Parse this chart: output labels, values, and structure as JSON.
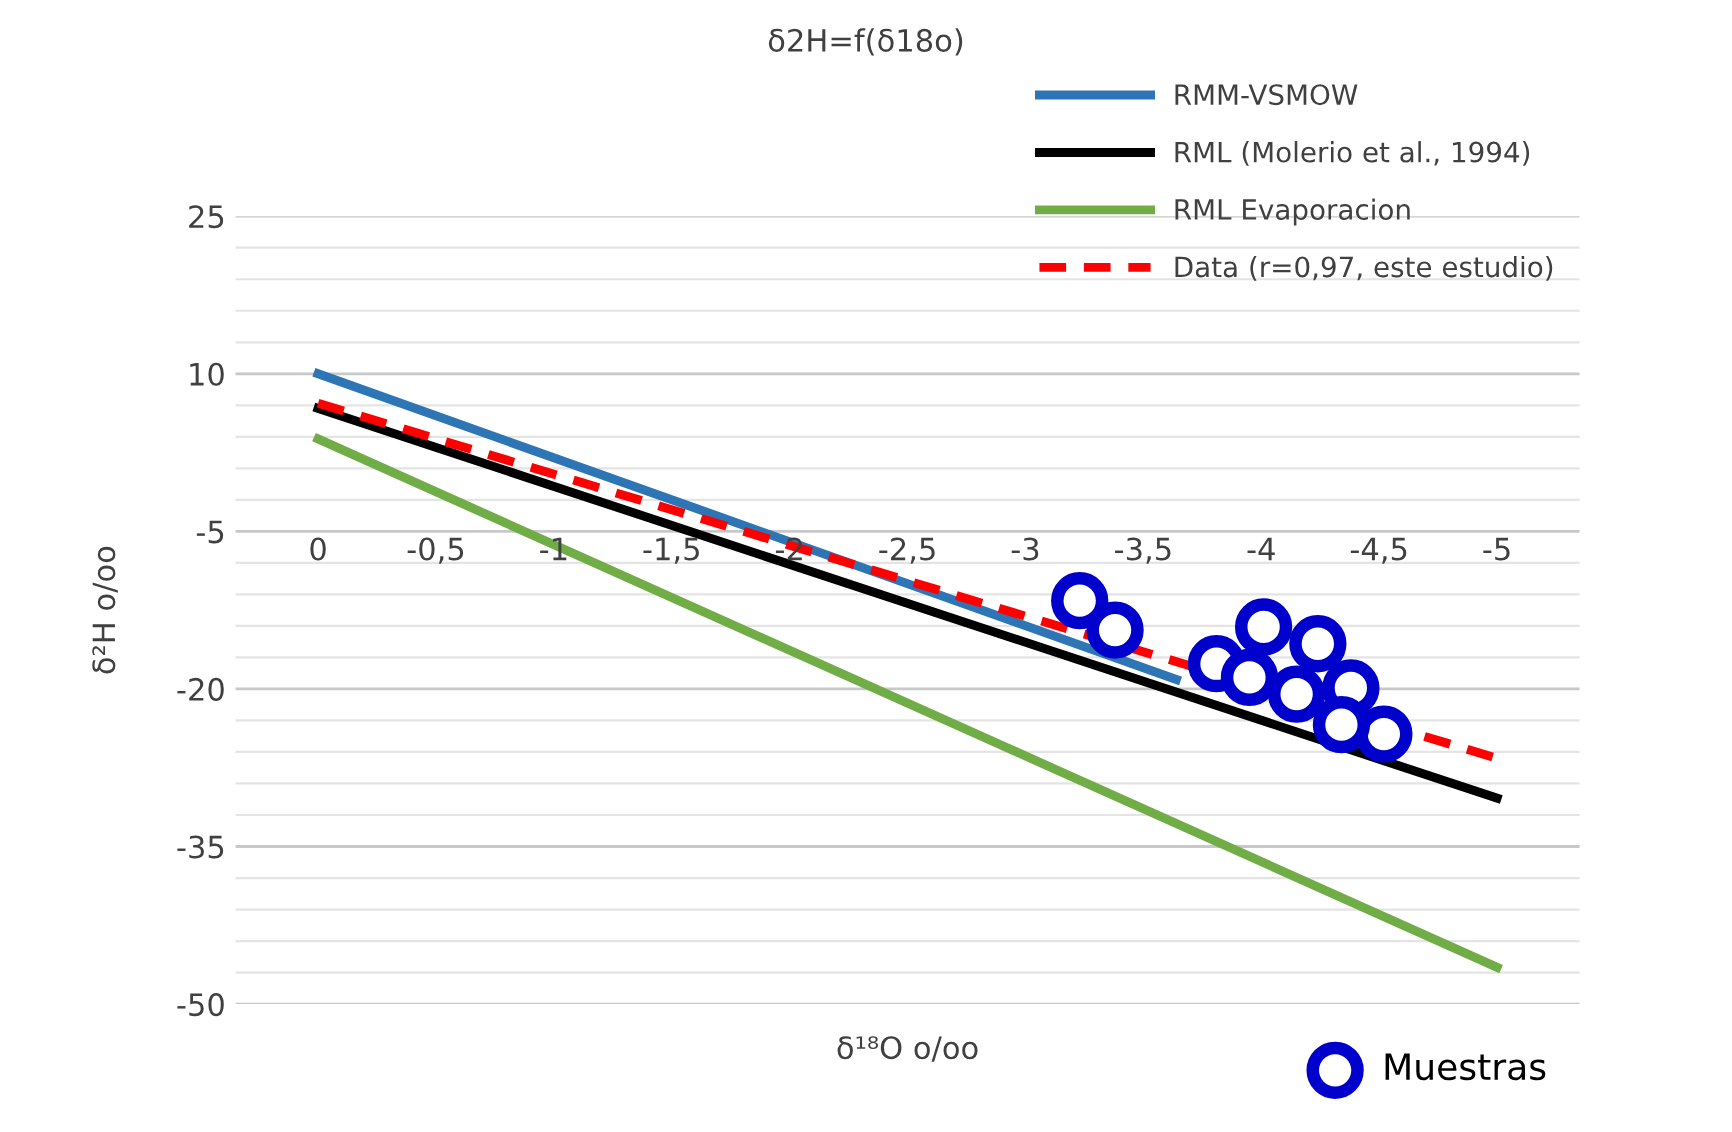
{
  "chart_data": {
    "type": "line",
    "title": "δ2H=f(δ18o)",
    "xlabel": "δ¹⁸O o/oo",
    "ylabel": "δ²H o/oo",
    "xlim": [
      0.35,
      -5.35
    ],
    "xticks": [
      {
        "value": 0,
        "label": "0"
      },
      {
        "value": -0.5,
        "label": "-0,5"
      },
      {
        "value": -1,
        "label": "-1"
      },
      {
        "value": -1.5,
        "label": "-1,5"
      },
      {
        "value": -2,
        "label": "-2"
      },
      {
        "value": -2.5,
        "label": "-2,5"
      },
      {
        "value": -3,
        "label": "-3"
      },
      {
        "value": -3.5,
        "label": "-3,5"
      },
      {
        "value": -4,
        "label": "-4"
      },
      {
        "value": -4.5,
        "label": "-4,5"
      },
      {
        "value": -5,
        "label": "-5"
      }
    ],
    "ylim": [
      -50,
      25
    ],
    "yticks": [
      -50,
      -35,
      -20,
      -5,
      10,
      25
    ],
    "grid": "y",
    "legend": "top right",
    "series": [
      {
        "name": "RMM-VSMOW",
        "color": "#2e75b6",
        "x": [
          0,
          -3.64
        ],
        "values": [
          10,
          -19.1
        ],
        "line_style": "solid"
      },
      {
        "name": "RML (Molerio et al., 1994)",
        "color": "#000000",
        "x": [
          0,
          -5
        ],
        "values": [
          6.7,
          -30.4
        ],
        "line_style": "solid"
      },
      {
        "name": "RML Evaporacion",
        "color": "#70ad47",
        "x": [
          0,
          -5
        ],
        "values": [
          3.8,
          -46.5
        ],
        "line_style": "solid"
      },
      {
        "name": "Data (r=0,97, este estudio)",
        "color": "#ff0000",
        "x": [
          0,
          -5
        ],
        "values": [
          7.2,
          -26.6
        ],
        "line_style": "dashed"
      },
      {
        "name": "Muestras",
        "type": "scatter",
        "marker": "circle",
        "color": "#0000cc",
        "x": [
          -3.23,
          -3.38,
          -3.81,
          -4.01,
          -4.24,
          -4.38,
          -4.52,
          -3.95,
          -4.15,
          -4.34
        ],
        "values": [
          -11.6,
          -14.4,
          -17.6,
          -14.1,
          -15.7,
          -19.9,
          -24.3,
          -18.9,
          -20.5,
          -23.4
        ]
      }
    ]
  }
}
